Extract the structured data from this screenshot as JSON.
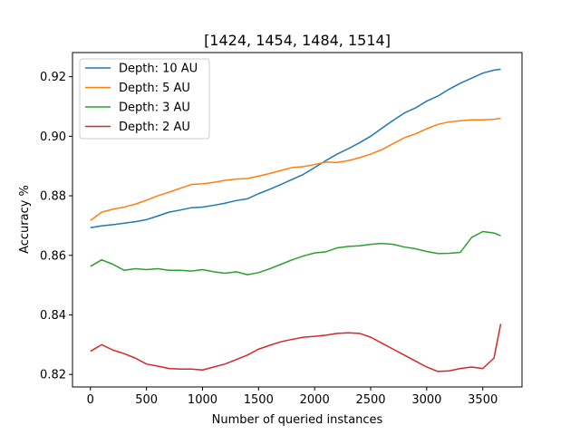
{
  "chart_data": {
    "type": "line",
    "title": "[1424, 1454, 1484, 1514]",
    "xlabel": "Number of queried instances",
    "ylabel": "Accuracy %",
    "xlim": [
      -160,
      3850
    ],
    "ylim": [
      0.8158,
      0.9281
    ],
    "xticks": [
      0,
      500,
      1000,
      1500,
      2000,
      2500,
      3000,
      3500
    ],
    "xtick_labels": [
      "0",
      "500",
      "1000",
      "1500",
      "2000",
      "2500",
      "3000",
      "3500"
    ],
    "yticks": [
      0.82,
      0.84,
      0.86,
      0.88,
      0.9,
      0.92
    ],
    "ytick_labels": [
      "0.82",
      "0.84",
      "0.86",
      "0.88",
      "0.90",
      "0.92"
    ],
    "legend_position": "upper-left",
    "grid": false,
    "x": [
      0,
      100,
      200,
      300,
      400,
      500,
      600,
      700,
      800,
      900,
      1000,
      1100,
      1200,
      1300,
      1400,
      1500,
      1600,
      1700,
      1800,
      1900,
      2000,
      2100,
      2200,
      2300,
      2400,
      2500,
      2600,
      2700,
      2800,
      2900,
      3000,
      3100,
      3200,
      3300,
      3400,
      3500,
      3600,
      3660
    ],
    "series": [
      {
        "name": "Depth: 10 AU",
        "color": "#1f77b4",
        "values": [
          0.8693,
          0.8699,
          0.8703,
          0.8708,
          0.8713,
          0.872,
          0.8732,
          0.8745,
          0.8752,
          0.876,
          0.8762,
          0.8768,
          0.8775,
          0.8784,
          0.879,
          0.8807,
          0.8822,
          0.8838,
          0.8855,
          0.8872,
          0.8895,
          0.8918,
          0.894,
          0.8958,
          0.8978,
          0.9,
          0.9027,
          0.9053,
          0.9078,
          0.9095,
          0.9118,
          0.9135,
          0.9158,
          0.9178,
          0.9195,
          0.9212,
          0.9222,
          0.9225
        ]
      },
      {
        "name": "Depth: 5 AU",
        "color": "#ff7f0e",
        "values": [
          0.8717,
          0.8745,
          0.8755,
          0.8762,
          0.8772,
          0.8785,
          0.88,
          0.8812,
          0.8825,
          0.8838,
          0.884,
          0.8845,
          0.8852,
          0.8856,
          0.8858,
          0.8866,
          0.8875,
          0.8885,
          0.8895,
          0.8898,
          0.8905,
          0.8913,
          0.8912,
          0.8918,
          0.8928,
          0.894,
          0.8955,
          0.8975,
          0.8995,
          0.9008,
          0.9025,
          0.904,
          0.9048,
          0.9052,
          0.9055,
          0.9055,
          0.9057,
          0.906
        ]
      },
      {
        "name": "Depth: 3 AU",
        "color": "#2ca02c",
        "values": [
          0.8563,
          0.8585,
          0.857,
          0.855,
          0.8555,
          0.8552,
          0.8555,
          0.855,
          0.855,
          0.8547,
          0.8552,
          0.8545,
          0.854,
          0.8545,
          0.8535,
          0.8542,
          0.8555,
          0.857,
          0.8585,
          0.8598,
          0.8608,
          0.8612,
          0.8625,
          0.863,
          0.8632,
          0.8637,
          0.864,
          0.8637,
          0.8628,
          0.8622,
          0.8613,
          0.8606,
          0.8607,
          0.861,
          0.866,
          0.868,
          0.8675,
          0.8666
        ]
      },
      {
        "name": "Depth: 2 AU",
        "color": "#d62728",
        "values": [
          0.8278,
          0.83,
          0.8282,
          0.827,
          0.8255,
          0.8235,
          0.8228,
          0.822,
          0.8218,
          0.8218,
          0.8215,
          0.8225,
          0.8235,
          0.825,
          0.8265,
          0.8285,
          0.8298,
          0.831,
          0.8318,
          0.8325,
          0.8328,
          0.8332,
          0.8338,
          0.834,
          0.8338,
          0.8325,
          0.8305,
          0.8285,
          0.8265,
          0.8245,
          0.8225,
          0.821,
          0.8212,
          0.822,
          0.8225,
          0.822,
          0.8255,
          0.837
        ]
      }
    ]
  }
}
